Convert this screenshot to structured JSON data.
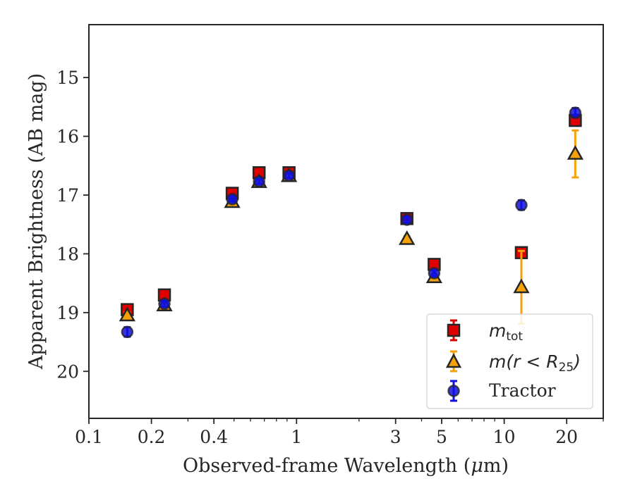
{
  "chart_data": {
    "type": "scatter",
    "xlabel": "Observed-frame Wavelength (μm)",
    "xlabel_parts": {
      "main": "Observed-frame Wavelength (",
      "unit_italic": "μ",
      "unit_rest": "m)"
    },
    "ylabel": "Apparent Brightness (AB mag)",
    "x_scale": "log",
    "xlim": [
      0.1,
      30
    ],
    "ylim": [
      20.8,
      14.1
    ],
    "y_inverted": true,
    "grid": false,
    "legend_position": "lower-right",
    "x_ticks": [
      {
        "value": 0.1,
        "label": "0.1"
      },
      {
        "value": 0.2,
        "label": "0.2"
      },
      {
        "value": 0.4,
        "label": "0.4"
      },
      {
        "value": 1,
        "label": "1"
      },
      {
        "value": 3,
        "label": "3"
      },
      {
        "value": 5,
        "label": "5"
      },
      {
        "value": 10,
        "label": "10"
      },
      {
        "value": 20,
        "label": "20"
      }
    ],
    "x_minor_ticks": [
      0.3,
      0.5,
      0.6,
      0.7,
      0.8,
      0.9,
      2,
      4,
      6,
      7,
      8,
      9,
      30
    ],
    "y_ticks": [
      {
        "value": 15,
        "label": "15"
      },
      {
        "value": 16,
        "label": "16"
      },
      {
        "value": 17,
        "label": "17"
      },
      {
        "value": 18,
        "label": "18"
      },
      {
        "value": 19,
        "label": "19"
      },
      {
        "value": 20,
        "label": "20"
      }
    ],
    "series": [
      {
        "name": "m_tot",
        "legend": {
          "symbol": "m",
          "sub": "tot"
        },
        "marker": "square",
        "fill": "#e00000",
        "edge": "#262626",
        "errcolor": "#e00000",
        "x": [
          0.153,
          0.231,
          0.49,
          0.66,
          0.92,
          3.4,
          4.6,
          12.1,
          22.0
        ],
        "y": [
          18.95,
          18.7,
          16.97,
          16.62,
          16.62,
          17.4,
          18.18,
          17.98,
          15.73
        ],
        "err": [
          0.05,
          0.05,
          0.04,
          0.04,
          0.04,
          0.05,
          0.05,
          0.05,
          0.05
        ]
      },
      {
        "name": "m(r < R_25)",
        "legend": {
          "symbol": "m(r < R",
          "sub": "25",
          "close": ")"
        },
        "marker": "triangle",
        "fill": "#f5a20a",
        "edge": "#262626",
        "errcolor": "#f5a20a",
        "x": [
          0.153,
          0.231,
          0.49,
          0.66,
          0.92,
          3.4,
          4.6,
          12.1,
          22.0
        ],
        "y": [
          19.05,
          18.88,
          17.12,
          16.78,
          16.68,
          17.75,
          18.4,
          18.57,
          16.3
        ],
        "err": [
          0.05,
          0.05,
          0.04,
          0.04,
          0.04,
          0.05,
          0.05,
          0.62,
          0.4
        ]
      },
      {
        "name": "Tractor",
        "marker": "circle",
        "fill": "#1010e0",
        "edge": "#262626",
        "errcolor": "#1010e0",
        "x": [
          0.153,
          0.231,
          0.49,
          0.66,
          0.92,
          3.4,
          4.6,
          12.1,
          22.0
        ],
        "y": [
          19.33,
          18.85,
          17.07,
          16.77,
          16.67,
          17.42,
          18.33,
          17.17,
          15.6
        ],
        "err": [
          0.08,
          0.05,
          0.04,
          0.04,
          0.04,
          0.05,
          0.05,
          0.08,
          0.08
        ]
      }
    ]
  }
}
